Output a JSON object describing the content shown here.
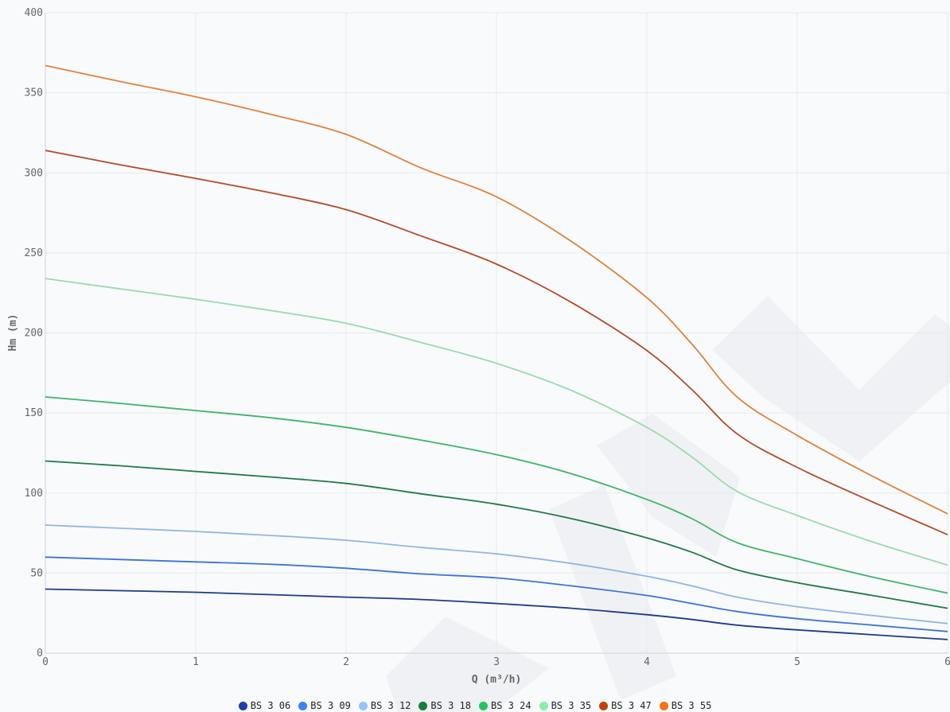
{
  "chart_data": {
    "type": "line",
    "title": "",
    "xlabel": "Q (m³/h)",
    "ylabel": "Hm (m)",
    "xlim": [
      0,
      6
    ],
    "ylim": [
      0,
      400
    ],
    "x_ticks": [
      "0",
      "1",
      "2",
      "3",
      "4",
      "5",
      "6"
    ],
    "y_ticks": [
      "0",
      "50",
      "100",
      "150",
      "200",
      "250",
      "300",
      "350",
      "400"
    ],
    "grid": true,
    "legend_position": "bottom",
    "x": [
      0,
      0.5,
      1,
      1.5,
      2,
      2.5,
      3,
      3.5,
      4,
      4.3,
      4.6,
      5,
      5.5,
      6
    ],
    "series": [
      {
        "name": "BS 3 06",
        "legend_color": "#1e40af",
        "line_color": "#1e3a8a",
        "values": [
          40,
          39,
          38,
          36.5,
          35,
          33.5,
          31,
          28,
          24,
          21,
          17.5,
          14.5,
          11.5,
          8.5
        ]
      },
      {
        "name": "BS 3 09",
        "legend_color": "#3b82f6",
        "line_color": "#3b73d6",
        "values": [
          60,
          58.5,
          57,
          55.5,
          53,
          49.5,
          47,
          42,
          36,
          31,
          26,
          21.5,
          17.5,
          13.5
        ]
      },
      {
        "name": "BS 3 12",
        "legend_color": "#93c5fd",
        "line_color": "#93b5e3",
        "values": [
          80,
          78,
          76,
          73.5,
          70.5,
          66,
          62,
          56,
          48,
          42,
          35,
          29,
          23.5,
          18.5
        ]
      },
      {
        "name": "BS 3 18",
        "legend_color": "#15803d",
        "line_color": "#1f7a45",
        "values": [
          120,
          117,
          113.5,
          110,
          106,
          99.5,
          93,
          84,
          72,
          63,
          52,
          44,
          36,
          28
        ]
      },
      {
        "name": "BS 3 24",
        "legend_color": "#22c55e",
        "line_color": "#3fb46b",
        "values": [
          160,
          156,
          151.5,
          147,
          141,
          133,
          124,
          112,
          96,
          84,
          69,
          59,
          47.5,
          37.5
        ]
      },
      {
        "name": "BS 3 35",
        "legend_color": "#86efac",
        "line_color": "#98dcb0",
        "values": [
          234,
          227.5,
          221,
          214,
          206,
          194,
          181,
          164,
          141,
          122.5,
          101,
          86,
          69.5,
          55
        ]
      },
      {
        "name": "BS 3 47",
        "legend_color": "#c2410c",
        "line_color": "#b34c24",
        "values": [
          314,
          305,
          296.5,
          287.5,
          277,
          260.5,
          243,
          219,
          189,
          164.5,
          137,
          116,
          94.5,
          74
        ]
      },
      {
        "name": "BS 3 55",
        "legend_color": "#f97316",
        "line_color": "#e0823d",
        "values": [
          367,
          357,
          347.5,
          336.5,
          324,
          303,
          285,
          257,
          222,
          193,
          160,
          136,
          110.5,
          87
        ]
      }
    ]
  }
}
